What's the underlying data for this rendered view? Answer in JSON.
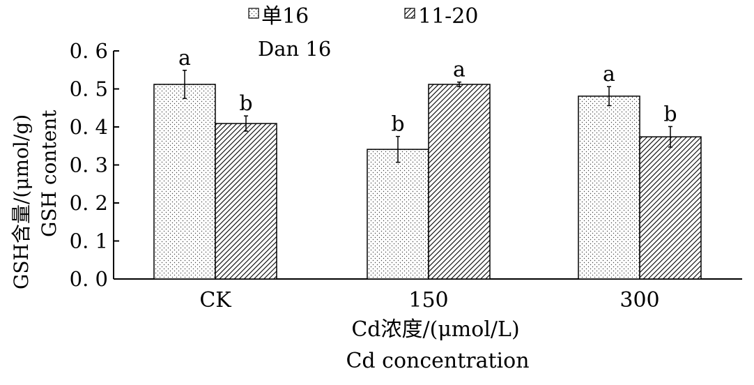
{
  "chart_data": {
    "type": "bar",
    "categories": [
      "CK",
      "150",
      "300"
    ],
    "series": [
      {
        "name": "单16",
        "name_en": "Dan 16",
        "pattern": "dotted",
        "values": [
          0.512,
          0.341,
          0.481
        ],
        "errors": [
          0.037,
          0.034,
          0.025
        ],
        "letters": [
          "a",
          "b",
          "a"
        ]
      },
      {
        "name": "11-20",
        "pattern": "hatched",
        "values": [
          0.409,
          0.512,
          0.374
        ],
        "errors": [
          0.02,
          0.006,
          0.027
        ],
        "letters": [
          "b",
          "a",
          "b"
        ]
      }
    ],
    "ylim": [
      0,
      0.6
    ],
    "yticks": [
      "0. 0",
      "0. 1",
      "0. 2",
      "0. 3",
      "0. 4",
      "0. 5",
      "0. 6"
    ],
    "ylabel": "GSH含量/(μmol/g)",
    "ylabel_en": "GSH  content",
    "xlabel": "Cd浓度/(μmol/L)",
    "xlabel_en": "Cd concentration",
    "legend_position": "top"
  }
}
